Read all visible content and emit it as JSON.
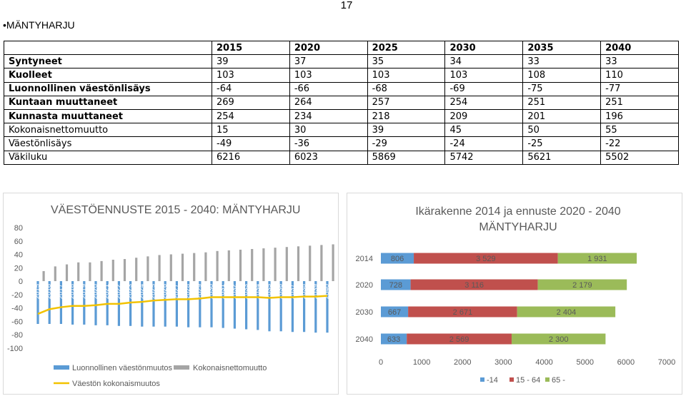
{
  "page_number": "17",
  "heading": "•MÄNTYHARJU",
  "table": {
    "columns": [
      "",
      "2015",
      "2020",
      "2025",
      "2030",
      "2035",
      "2040"
    ],
    "rows": [
      {
        "label": "Syntyneet",
        "values": [
          "39",
          "37",
          "35",
          "34",
          "33",
          "33"
        ]
      },
      {
        "label": "Kuolleet",
        "values": [
          "103",
          "103",
          "103",
          "103",
          "108",
          "110"
        ]
      },
      {
        "label": "Luonnollinen väestönlisäys",
        "values": [
          "-64",
          "-66",
          "-68",
          "-69",
          "-75",
          "-77"
        ]
      },
      {
        "label": "Kuntaan muuttaneet",
        "values": [
          "269",
          "264",
          "257",
          "254",
          "251",
          "251"
        ]
      },
      {
        "label": "Kunnasta muuttaneet",
        "values": [
          "254",
          "234",
          "218",
          "209",
          "201",
          "196"
        ]
      },
      {
        "label": "Kokonaisnettomuutto",
        "values": [
          "15",
          "30",
          "39",
          "45",
          "50",
          "55"
        ]
      },
      {
        "label": "Väestönlisäys",
        "values": [
          "-49",
          "-36",
          "-29",
          "-24",
          "-25",
          "-22"
        ]
      },
      {
        "label": "Väkiluku",
        "values": [
          "6216",
          "6023",
          "5869",
          "5742",
          "5621",
          "5502"
        ]
      }
    ]
  },
  "chart_data": [
    {
      "type": "bar",
      "title": "VÄESTÖENNUSTE 2015 - 2040: MÄNTYHARJU",
      "categories": [
        "2015",
        "2016",
        "2017",
        "2018",
        "2019",
        "2020",
        "2021",
        "2022",
        "2023",
        "2024",
        "2025",
        "2026",
        "2027",
        "2028",
        "2029",
        "2030",
        "2031",
        "2032",
        "2033",
        "2034",
        "2035",
        "2036",
        "2037",
        "2038",
        "2039",
        "2040"
      ],
      "ylim": [
        -100,
        80
      ],
      "yticks": [
        "80",
        "60",
        "40",
        "20",
        "0",
        "-20",
        "-40",
        "-60",
        "-80",
        "-100"
      ],
      "series": [
        {
          "name": "Luonnollinen väestönmuutos",
          "type": "bar",
          "color": "#5b9bd5",
          "values": [
            -64,
            -64,
            -64,
            -65,
            -65,
            -66,
            -66,
            -67,
            -67,
            -68,
            -68,
            -68,
            -68,
            -69,
            -69,
            -69,
            -70,
            -71,
            -72,
            -73,
            -75,
            -75,
            -76,
            -76,
            -77,
            -77
          ]
        },
        {
          "name": "Kokonaisnettomuutto",
          "type": "bar",
          "color": "#a5a5a5",
          "values": [
            15,
            22,
            25,
            28,
            28,
            30,
            32,
            33,
            35,
            37,
            39,
            40,
            41,
            42,
            43,
            45,
            46,
            47,
            48,
            49,
            50,
            51,
            52,
            53,
            54,
            55
          ]
        },
        {
          "name": "Väestön kokonaismuutos",
          "type": "line",
          "color": "#f2c200",
          "values": [
            -49,
            -42,
            -39,
            -37,
            -37,
            -36,
            -34,
            -34,
            -32,
            -31,
            -29,
            -28,
            -27,
            -27,
            -26,
            -24,
            -24,
            -24,
            -24,
            -24,
            -25,
            -24,
            -24,
            -23,
            -23,
            -22
          ]
        }
      ],
      "legend_position": "bottom"
    },
    {
      "type": "bar",
      "orientation": "horizontal-stacked",
      "title": "Ikärakenne 2014 ja ennuste 2020 - 2040 MÄNTYHARJU",
      "categories": [
        "2014",
        "2020",
        "2030",
        "2040"
      ],
      "xlim": [
        0,
        7000
      ],
      "xticks": [
        "0",
        "1000",
        "2000",
        "3000",
        "4000",
        "5000",
        "6000",
        "7000"
      ],
      "series": [
        {
          "name": "-14",
          "color": "#5b9bd5",
          "values": [
            806,
            728,
            667,
            633
          ],
          "labels": [
            "806",
            "728",
            "667",
            "633"
          ]
        },
        {
          "name": "15 - 64",
          "color": "#c0504d",
          "values": [
            3529,
            3116,
            2671,
            2569
          ],
          "labels": [
            "3 529",
            "3 116",
            "2 671",
            "2 569"
          ]
        },
        {
          "name": "65 -",
          "color": "#9bbb59",
          "values": [
            1931,
            2179,
            2404,
            2300
          ],
          "labels": [
            "1 931",
            "2 179",
            "2 404",
            "2 300"
          ]
        }
      ],
      "legend_position": "bottom"
    }
  ]
}
